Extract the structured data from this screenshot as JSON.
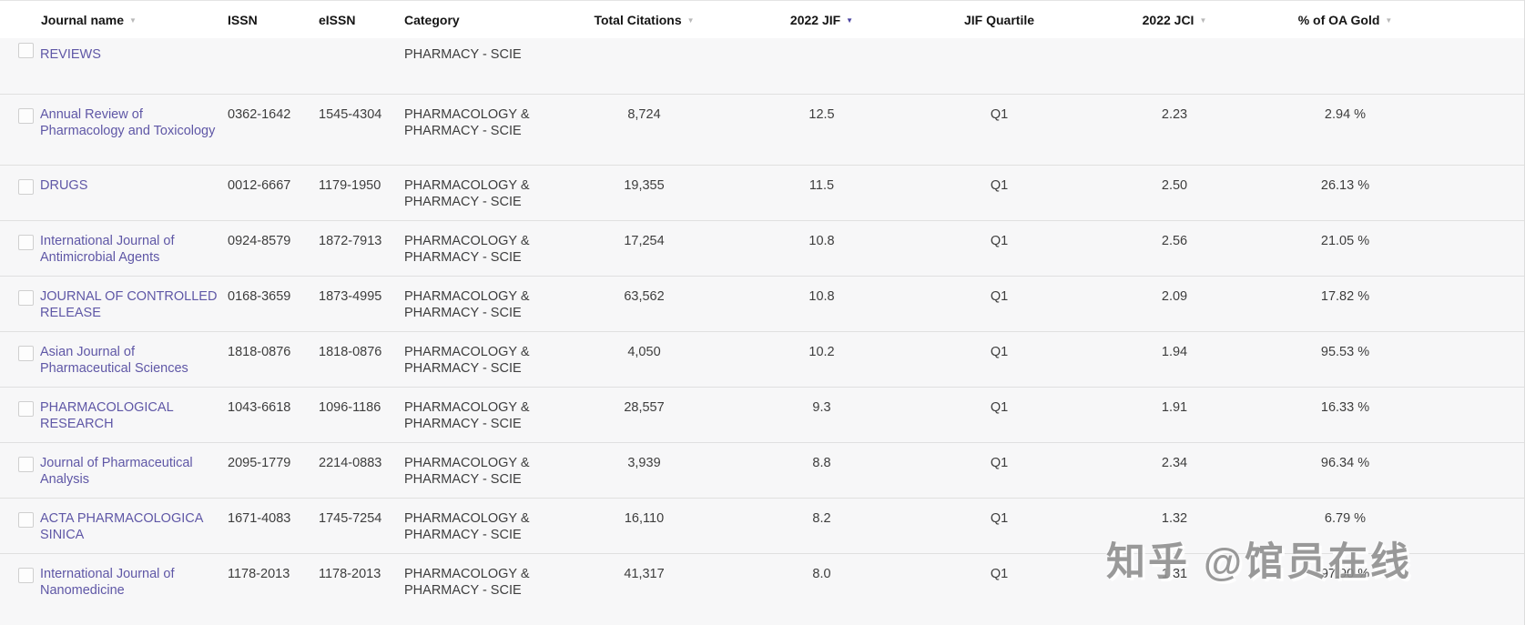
{
  "table": {
    "columns": {
      "journal_name": "Journal name",
      "issn": "ISSN",
      "eissn": "eISSN",
      "category": "Category",
      "total_citations": "Total Citations",
      "jif": "2022 JIF",
      "jif_quartile": "JIF Quartile",
      "jci": "2022 JCI",
      "oa_gold": "% of OA Gold"
    },
    "partial_row": {
      "name": "REVIEWS",
      "category": "PHARMACY - SCIE"
    },
    "rows": [
      {
        "name": "Annual Review of Pharmacology and Toxicology",
        "issn": "0362-1642",
        "eissn": "1545-4304",
        "category": "PHARMACOLOGY & PHARMACY - SCIE",
        "citations": "8,724",
        "jif": "12.5",
        "quartile": "Q1",
        "jci": "2.23",
        "oa_gold": "2.94 %"
      },
      {
        "name": "DRUGS",
        "issn": "0012-6667",
        "eissn": "1179-1950",
        "category": "PHARMACOLOGY & PHARMACY - SCIE",
        "citations": "19,355",
        "jif": "11.5",
        "quartile": "Q1",
        "jci": "2.50",
        "oa_gold": "26.13 %"
      },
      {
        "name": "International Journal of Antimicrobial Agents",
        "issn": "0924-8579",
        "eissn": "1872-7913",
        "category": "PHARMACOLOGY & PHARMACY - SCIE",
        "citations": "17,254",
        "jif": "10.8",
        "quartile": "Q1",
        "jci": "2.56",
        "oa_gold": "21.05 %"
      },
      {
        "name": "JOURNAL OF CONTROLLED RELEASE",
        "issn": "0168-3659",
        "eissn": "1873-4995",
        "category": "PHARMACOLOGY & PHARMACY - SCIE",
        "citations": "63,562",
        "jif": "10.8",
        "quartile": "Q1",
        "jci": "2.09",
        "oa_gold": "17.82 %"
      },
      {
        "name": "Asian Journal of Pharmaceutical Sciences",
        "issn": "1818-0876",
        "eissn": "1818-0876",
        "category": "PHARMACOLOGY & PHARMACY - SCIE",
        "citations": "4,050",
        "jif": "10.2",
        "quartile": "Q1",
        "jci": "1.94",
        "oa_gold": "95.53 %"
      },
      {
        "name": "PHARMACOLOGICAL RESEARCH",
        "issn": "1043-6618",
        "eissn": "1096-1186",
        "category": "PHARMACOLOGY & PHARMACY - SCIE",
        "citations": "28,557",
        "jif": "9.3",
        "quartile": "Q1",
        "jci": "1.91",
        "oa_gold": "16.33 %"
      },
      {
        "name": "Journal of Pharmaceutical Analysis",
        "issn": "2095-1779",
        "eissn": "2214-0883",
        "category": "PHARMACOLOGY & PHARMACY - SCIE",
        "citations": "3,939",
        "jif": "8.8",
        "quartile": "Q1",
        "jci": "2.34",
        "oa_gold": "96.34 %"
      },
      {
        "name": "ACTA PHARMACOLOGICA SINICA",
        "issn": "1671-4083",
        "eissn": "1745-7254",
        "category": "PHARMACOLOGY & PHARMACY - SCIE",
        "citations": "16,110",
        "jif": "8.2",
        "quartile": "Q1",
        "jci": "1.32",
        "oa_gold": "6.79 %"
      },
      {
        "name": "International Journal of Nanomedicine",
        "issn": "1178-2013",
        "eissn": "1178-2013",
        "category": "PHARMACOLOGY & PHARMACY - SCIE",
        "citations": "41,317",
        "jif": "8.0",
        "quartile": "Q1",
        "jci": "1.31",
        "oa_gold": "97.90 %"
      }
    ]
  },
  "colors": {
    "link_purple": "#5f57a6",
    "sort_active": "#4b44a1",
    "sort_inactive": "#b9b9b9",
    "row_bg": "#f7f7f8"
  },
  "watermark": "知乎 @馆员在线"
}
